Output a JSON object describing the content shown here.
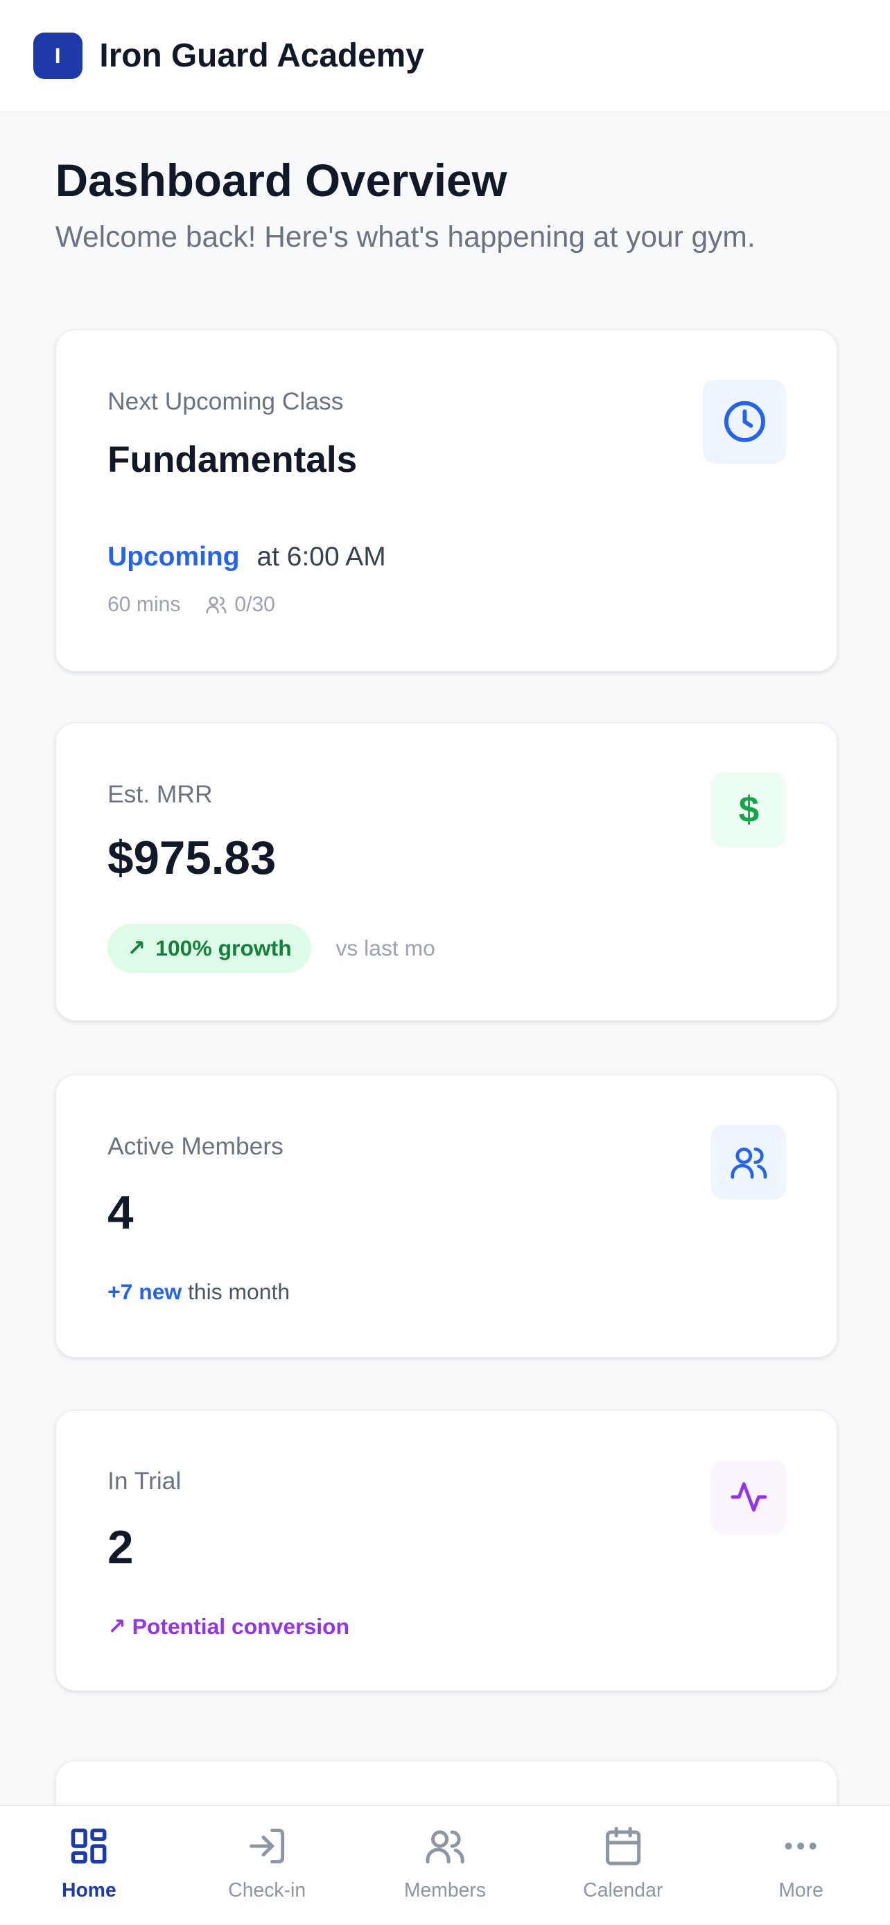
{
  "header": {
    "logo_letter": "I",
    "title": "Iron Guard Academy"
  },
  "page": {
    "title": "Dashboard Overview",
    "subtitle": "Welcome back! Here's what's happening at your gym."
  },
  "next_class": {
    "label": "Next Upcoming Class",
    "name": "Fundamentals",
    "status": "Upcoming",
    "time": "at 6:00 AM",
    "duration": "60 mins",
    "capacity": "0/30",
    "icon": "clock-icon"
  },
  "mrr": {
    "label": "Est. MRR",
    "value": "$975.83",
    "growth": "100% growth",
    "comparison": "vs last mo",
    "icon": "dollar-icon"
  },
  "members": {
    "label": "Active Members",
    "value": "4",
    "new": "+7 new",
    "suffix": "this month",
    "icon": "users-icon"
  },
  "trial": {
    "label": "In Trial",
    "value": "2",
    "note": "Potential conversion",
    "icon": "activity-icon"
  },
  "nav": [
    {
      "label": "Home",
      "icon": "grid-icon",
      "active": true
    },
    {
      "label": "Check-in",
      "icon": "log-in-icon"
    },
    {
      "label": "Members",
      "icon": "users-icon"
    },
    {
      "label": "Calendar",
      "icon": "calendar-icon"
    },
    {
      "label": "More",
      "icon": "more-icon"
    }
  ],
  "colors": {
    "accent": "#1e3aa8",
    "blue": "#2563eb",
    "green": "#16a34a",
    "purple": "#9333ea"
  }
}
